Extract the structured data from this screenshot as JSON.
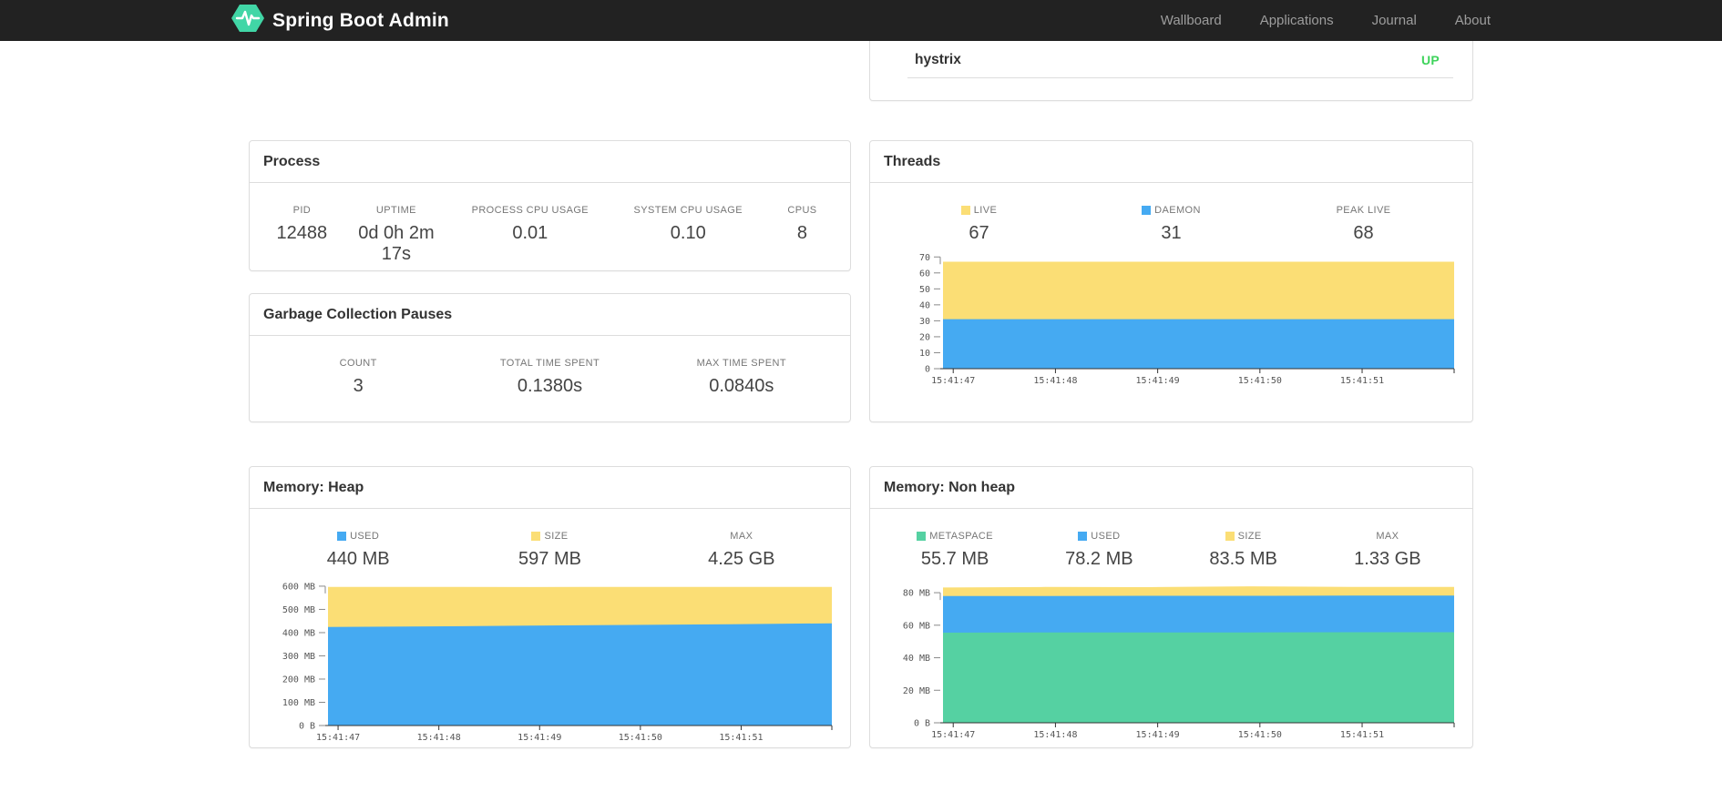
{
  "navbar": {
    "brand": "Spring Boot Admin",
    "links": [
      {
        "label": "Wallboard"
      },
      {
        "label": "Applications"
      },
      {
        "label": "Journal"
      },
      {
        "label": "About"
      }
    ]
  },
  "application_row": {
    "name": "hystrix",
    "status": "UP",
    "status_color": "#3fd35c"
  },
  "colors": {
    "blue": "#45aaf2",
    "yellow": "#fbde75",
    "green": "#55d1a2",
    "navbar_bg": "#222222",
    "logo_teal": "#41d6a6",
    "status_up": "#3fd35c"
  },
  "panels": {
    "process": {
      "title": "Process",
      "stats": [
        {
          "label": "PID",
          "value": "12488"
        },
        {
          "label": "UPTIME",
          "value": "0d 0h 2m 17s"
        },
        {
          "label": "PROCESS CPU USAGE",
          "value": "0.01"
        },
        {
          "label": "SYSTEM CPU USAGE",
          "value": "0.10"
        },
        {
          "label": "CPUS",
          "value": "8"
        }
      ]
    },
    "gc": {
      "title": "Garbage Collection Pauses",
      "stats": [
        {
          "label": "COUNT",
          "value": "3"
        },
        {
          "label": "TOTAL TIME SPENT",
          "value": "0.1380s"
        },
        {
          "label": "MAX TIME SPENT",
          "value": "0.0840s"
        }
      ]
    },
    "threads": {
      "title": "Threads",
      "stats": [
        {
          "label": "LIVE",
          "value": "67",
          "swatch": "#fbde75"
        },
        {
          "label": "DAEMON",
          "value": "31",
          "swatch": "#45aaf2"
        },
        {
          "label": "PEAK LIVE",
          "value": "68"
        }
      ]
    },
    "memory_heap": {
      "title": "Memory: Heap",
      "stats": [
        {
          "label": "USED",
          "value": "440 MB",
          "swatch": "#45aaf2"
        },
        {
          "label": "SIZE",
          "value": "597 MB",
          "swatch": "#fbde75"
        },
        {
          "label": "MAX",
          "value": "4.25 GB"
        }
      ]
    },
    "memory_non_heap": {
      "title": "Memory: Non heap",
      "stats": [
        {
          "label": "METASPACE",
          "value": "55.7 MB",
          "swatch": "#55d1a2"
        },
        {
          "label": "USED",
          "value": "78.2 MB",
          "swatch": "#45aaf2"
        },
        {
          "label": "SIZE",
          "value": "83.5 MB",
          "swatch": "#fbde75"
        },
        {
          "label": "MAX",
          "value": "1.33 GB"
        }
      ]
    }
  },
  "chart_data": [
    {
      "id": "threads",
      "type": "area",
      "stacked": true,
      "title": "Threads",
      "series_mode": "absolute-stack-top",
      "x_labels": [
        "15:41:47",
        "15:41:48",
        "15:41:49",
        "15:41:50",
        "15:41:51"
      ],
      "ylim": [
        0,
        73
      ],
      "grid": false,
      "legend_position": "top",
      "yticks": [
        {
          "v": 0,
          "label": "0"
        },
        {
          "v": 10,
          "label": "10"
        },
        {
          "v": 20,
          "label": "20"
        },
        {
          "v": 30,
          "label": "30"
        },
        {
          "v": 40,
          "label": "40"
        },
        {
          "v": 50,
          "label": "50"
        },
        {
          "v": 60,
          "label": "60"
        },
        {
          "v": 70,
          "label": "70"
        }
      ],
      "series": [
        {
          "name": "DAEMON",
          "color": "#45aaf2",
          "values": [
            31,
            31,
            31,
            31,
            31,
            31
          ]
        },
        {
          "name": "LIVE",
          "color": "#fbde75",
          "values": [
            67,
            67,
            67,
            67,
            67,
            67
          ]
        }
      ]
    },
    {
      "id": "memory-heap",
      "type": "area",
      "stacked": true,
      "title": "Memory: Heap",
      "series_mode": "absolute-stack-top",
      "unit": "MB",
      "x_labels": [
        "15:41:47",
        "15:41:48",
        "15:41:49",
        "15:41:50",
        "15:41:51"
      ],
      "ylim": [
        0,
        635
      ],
      "grid": false,
      "legend_position": "top",
      "yticks": [
        {
          "v": 0,
          "label": "0 B"
        },
        {
          "v": 100,
          "label": "100 MB"
        },
        {
          "v": 200,
          "label": "200 MB"
        },
        {
          "v": 300,
          "label": "300 MB"
        },
        {
          "v": 400,
          "label": "400 MB"
        },
        {
          "v": 500,
          "label": "500 MB"
        },
        {
          "v": 600,
          "label": "600 MB"
        }
      ],
      "series": [
        {
          "name": "USED",
          "color": "#45aaf2",
          "values": [
            424,
            427,
            430,
            433,
            436,
            440
          ]
        },
        {
          "name": "SIZE",
          "color": "#fbde75",
          "values": [
            597,
            597,
            596,
            597,
            597,
            597
          ]
        }
      ]
    },
    {
      "id": "memory-non-heap",
      "type": "area",
      "stacked": true,
      "title": "Memory: Non heap",
      "series_mode": "absolute-stack-top",
      "unit": "MB",
      "x_labels": [
        "15:41:47",
        "15:41:48",
        "15:41:49",
        "15:41:50",
        "15:41:51"
      ],
      "ylim": [
        0,
        89
      ],
      "grid": false,
      "legend_position": "top",
      "yticks": [
        {
          "v": 0,
          "label": "0 B"
        },
        {
          "v": 20,
          "label": "20 MB"
        },
        {
          "v": 40,
          "label": "40 MB"
        },
        {
          "v": 60,
          "label": "60 MB"
        },
        {
          "v": 80,
          "label": "80 MB"
        }
      ],
      "series": [
        {
          "name": "METASPACE",
          "color": "#55d1a2",
          "values": [
            55.4,
            55.5,
            55.6,
            55.6,
            55.7,
            55.7
          ]
        },
        {
          "name": "USED",
          "color": "#45aaf2",
          "values": [
            77.9,
            78.0,
            78.1,
            78.1,
            78.2,
            78.2
          ]
        },
        {
          "name": "SIZE",
          "color": "#fbde75",
          "values": [
            83.2,
            83.5,
            83.4,
            83.9,
            83.5,
            83.5
          ]
        }
      ]
    }
  ]
}
